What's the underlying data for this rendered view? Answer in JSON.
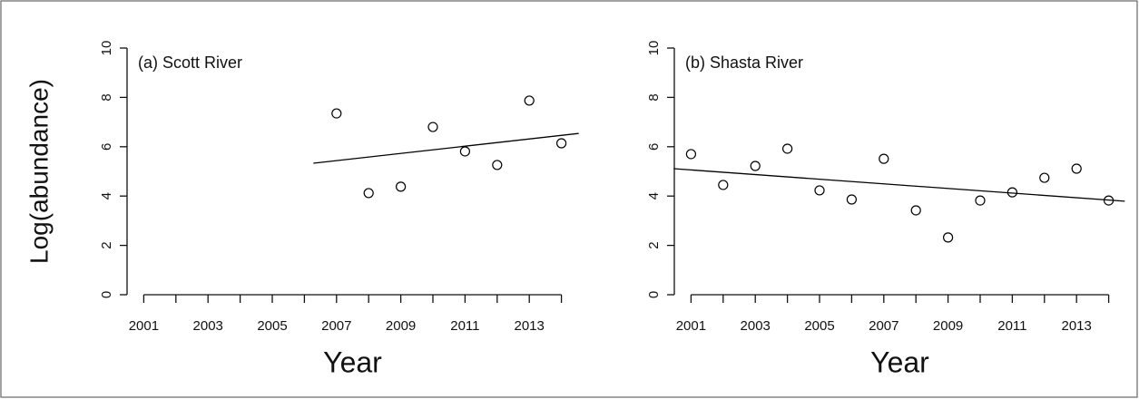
{
  "chart_data": [
    {
      "type": "scatter",
      "title": "(a) Scott River",
      "x_label": "Year",
      "y_label": "Log(abundance)",
      "x": [
        2007,
        2008,
        2009,
        2010,
        2011,
        2012,
        2013,
        2014
      ],
      "values": [
        7.35,
        4.12,
        4.38,
        6.8,
        5.81,
        5.26,
        7.87,
        6.14
      ],
      "trend": {
        "x": [
          2006.28,
          2014.54
        ],
        "values": [
          5.33,
          6.54
        ]
      },
      "xlim": [
        2000.48,
        2014.52
      ],
      "ylim": [
        0,
        10
      ],
      "xticks": [
        2001,
        2003,
        2005,
        2007,
        2009,
        2011,
        2013
      ],
      "xminor_ticks": [
        2002,
        2004,
        2006,
        2008,
        2010,
        2012,
        2014
      ],
      "yticks": [
        0,
        2,
        4,
        6,
        8,
        10
      ],
      "color": "#000000"
    },
    {
      "type": "scatter",
      "title": "(b) Shasta River",
      "x_label": "Year",
      "x": [
        2001,
        2002,
        2003,
        2004,
        2005,
        2006,
        2007,
        2008,
        2009,
        2010,
        2011,
        2012,
        2013,
        2014
      ],
      "values": [
        5.7,
        4.45,
        5.22,
        5.92,
        4.23,
        3.86,
        5.51,
        3.42,
        2.32,
        3.82,
        4.15,
        4.74,
        5.11,
        3.82
      ],
      "trend": {
        "x": [
          2000.46,
          2014.5
        ],
        "values": [
          5.11,
          3.79
        ]
      },
      "xlim": [
        2000.48,
        2014.52
      ],
      "ylim": [
        0,
        10
      ],
      "xticks": [
        2001,
        2003,
        2005,
        2007,
        2009,
        2011,
        2013
      ],
      "xminor_ticks": [
        2002,
        2004,
        2006,
        2008,
        2010,
        2012,
        2014
      ],
      "yticks": [
        0,
        2,
        4,
        6,
        8,
        10
      ],
      "color": "#000000"
    }
  ]
}
